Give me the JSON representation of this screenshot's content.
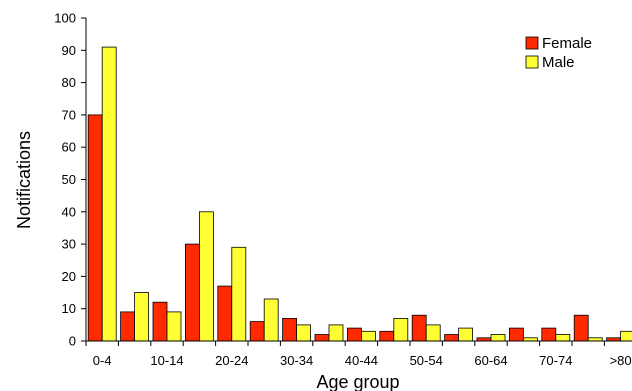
{
  "chart_data": {
    "type": "bar",
    "xlabel": "Age group",
    "ylabel": "Notifications",
    "ylim": [
      0,
      100
    ],
    "yticks": [
      0,
      10,
      20,
      30,
      40,
      50,
      60,
      70,
      80,
      90,
      100
    ],
    "grid": false,
    "legend_position": "top-right",
    "categories": [
      "0-4",
      "5-9",
      "10-14",
      "15-19",
      "20-24",
      "25-29",
      "30-34",
      "35-39",
      "40-44",
      "45-49",
      "50-54",
      "55-59",
      "60-64",
      "65-69",
      "70-74",
      "75-79",
      ">80"
    ],
    "category_labels_shown": [
      "0-4",
      "",
      "10-14",
      "",
      "20-24",
      "",
      "30-34",
      "",
      "40-44",
      "",
      "50-54",
      "",
      "60-64",
      "",
      "70-74",
      "",
      ">80"
    ],
    "series": [
      {
        "name": "Female",
        "color": "#ff2a00",
        "values": [
          70,
          9,
          12,
          30,
          17,
          6,
          7,
          2,
          4,
          3,
          8,
          2,
          1,
          4,
          4,
          8,
          1
        ]
      },
      {
        "name": "Male",
        "color": "#ffff33",
        "values": [
          91,
          15,
          9,
          40,
          29,
          13,
          5,
          5,
          3,
          7,
          5,
          4,
          2,
          1,
          2,
          1,
          3
        ]
      }
    ]
  }
}
